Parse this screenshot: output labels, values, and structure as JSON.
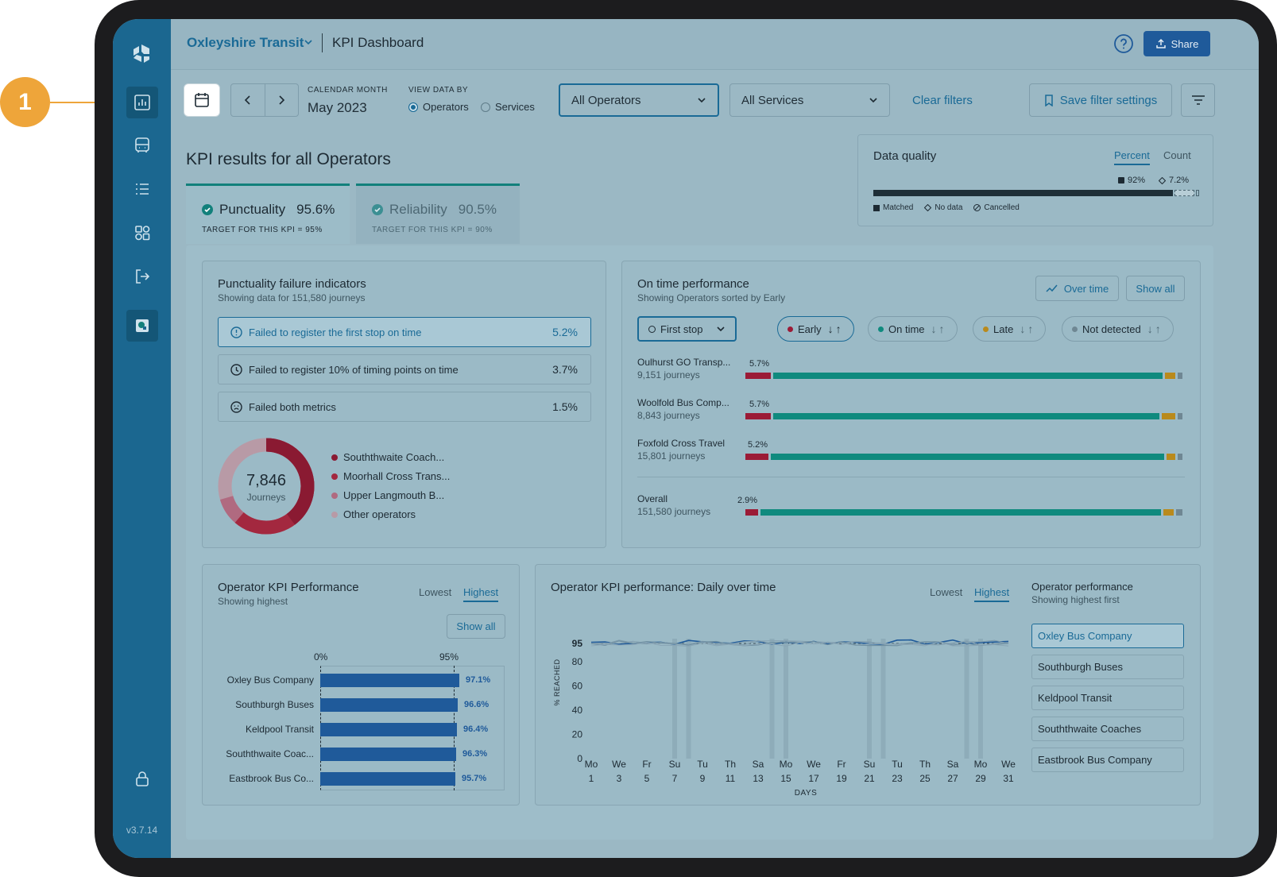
{
  "callout": {
    "number": "1"
  },
  "topbar": {
    "org": "Oxleyshire Transit",
    "page": "KPI Dashboard",
    "share": "Share"
  },
  "sidebar": {
    "version": "v3.7.14"
  },
  "filters": {
    "month_label": "CALENDAR MONTH",
    "month_value": "May 2023",
    "viewby_label": "VIEW DATA BY",
    "viewby_options": [
      "Operators",
      "Services"
    ],
    "operators_select": "All Operators",
    "services_select": "All Services",
    "clear": "Clear filters",
    "save": "Save filter settings"
  },
  "kpi": {
    "title": "KPI results for all Operators",
    "tabs": [
      {
        "name": "Punctuality",
        "value": "95.6%",
        "target": "TARGET FOR THIS KPI = 95%"
      },
      {
        "name": "Reliability",
        "value": "90.5%",
        "target": "TARGET FOR THIS KPI = 90%"
      }
    ]
  },
  "data_quality": {
    "title": "Data quality",
    "toggle": [
      "Percent",
      "Count"
    ],
    "matched_pct": "92%",
    "nodata_pct": "7.2%",
    "legend": [
      "Matched",
      "No data",
      "Cancelled"
    ],
    "matched": 92,
    "no_data": 7.2
  },
  "failures": {
    "title": "Punctuality failure indicators",
    "subtitle": "Showing data for 151,580 journeys",
    "rows": [
      {
        "label": "Failed to register the first stop on time",
        "value": "5.2%"
      },
      {
        "label": "Failed to register 10% of timing points on time",
        "value": "3.7%"
      },
      {
        "label": "Failed both metrics",
        "value": "1.5%"
      }
    ],
    "donut_total": "7,846",
    "donut_unit": "Journeys",
    "legend": [
      {
        "label": "Souththwaite Coach...",
        "color": "#8a1a32"
      },
      {
        "label": "Moorhall Cross Trans...",
        "color": "#a3283f"
      },
      {
        "label": "Upper Langmouth B...",
        "color": "#b06a80"
      },
      {
        "label": "Other operators",
        "color": "#b89aa6"
      }
    ]
  },
  "otp": {
    "title": "On time performance",
    "subtitle": "Showing Operators sorted by Early",
    "over_time": "Over time",
    "show_all": "Show all",
    "stop_select": "First stop",
    "pills": [
      "Early",
      "On time",
      "Late",
      "Not detected"
    ],
    "rows": [
      {
        "name": "Oulhurst GO Transp...",
        "journeys": "9,151 journeys",
        "pct": "5.7%"
      },
      {
        "name": "Woolfold Bus Comp...",
        "journeys": "8,843 journeys",
        "pct": "5.7%"
      },
      {
        "name": "Foxfold Cross Travel",
        "journeys": "15,801 journeys",
        "pct": "5.2%"
      },
      {
        "name": "Overall",
        "journeys": "151,580 journeys",
        "pct": "2.9%"
      }
    ]
  },
  "operator_kpi": {
    "title": "Operator KPI Performance",
    "subtitle": "Showing highest",
    "toggle": [
      "Lowest",
      "Highest"
    ],
    "show_all": "Show all",
    "axis": [
      "0%",
      "95%"
    ],
    "bars": [
      {
        "name": "Oxley Bus Company",
        "value": "97.1%"
      },
      {
        "name": "Southburgh Buses",
        "value": "96.6%"
      },
      {
        "name": "Keldpool Transit",
        "value": "96.4%"
      },
      {
        "name": "Souththwaite Coac...",
        "value": "96.3%"
      },
      {
        "name": "Eastbrook Bus Co...",
        "value": "95.7%"
      }
    ]
  },
  "daily": {
    "title": "Operator KPI performance: Daily over time",
    "toggle": [
      "Lowest",
      "Highest"
    ],
    "ylabel": "% REACHED",
    "xlabel": "DAYS",
    "yticks": [
      "95",
      "80",
      "60",
      "40",
      "20",
      "0"
    ],
    "xdays": [
      "Mo",
      "We",
      "Fr",
      "Su",
      "Tu",
      "Th",
      "Sa",
      "Mo",
      "We",
      "Fr",
      "Su",
      "Tu",
      "Th",
      "Sa",
      "Mo",
      "We"
    ],
    "xnums": [
      "1",
      "3",
      "5",
      "7",
      "9",
      "11",
      "13",
      "15",
      "17",
      "19",
      "21",
      "23",
      "25",
      "27",
      "29",
      "31"
    ],
    "perf_title": "Operator performance",
    "perf_sub": "Showing highest first",
    "perf_items": [
      "Oxley Bus Company",
      "Southburgh Buses",
      "Keldpool Transit",
      "Souththwaite Coaches",
      "Eastbrook Bus Company"
    ]
  },
  "colors": {
    "early": "#9b1b36",
    "ontime": "#0f8a7e",
    "late": "#b98a1c",
    "notdetected": "#6f8793",
    "accent": "#1a6a96"
  }
}
